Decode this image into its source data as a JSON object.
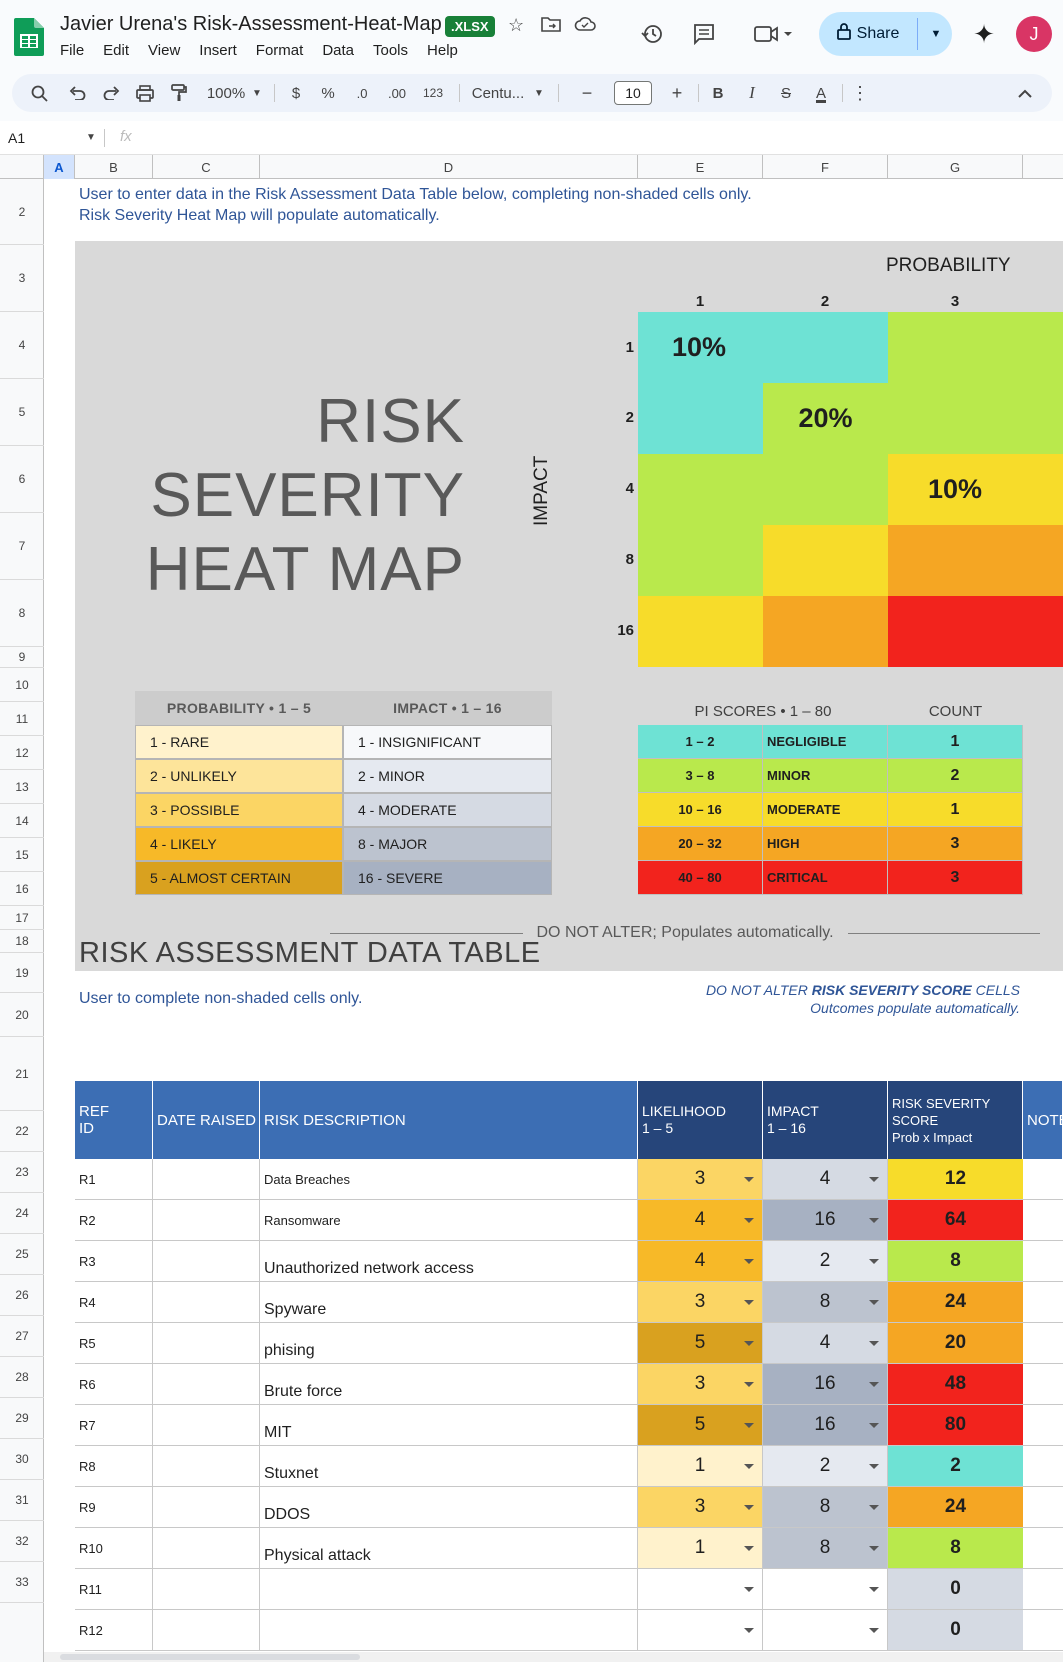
{
  "header": {
    "doc_title": "Javier Urena's Risk-Assessment-Heat-Map",
    "ext_badge": ".XLSX",
    "menus": [
      "File",
      "Edit",
      "View",
      "Insert",
      "Format",
      "Data",
      "Tools",
      "Help"
    ],
    "share_label": "Share",
    "avatar_letter": "J"
  },
  "toolbar": {
    "zoom": "100%",
    "currency": "$",
    "percent": "%",
    "dec_decrease": ".0",
    "dec_increase": ".00",
    "number_format": "123",
    "font": "Centu...",
    "font_size": "10",
    "bold": "B",
    "italic": "I",
    "strike": "S",
    "text_color": "A"
  },
  "formula_bar": {
    "cell_ref": "A1",
    "fx": "fx"
  },
  "columns": [
    "A",
    "B",
    "C",
    "D",
    "E",
    "F",
    "G"
  ],
  "rows": [
    "2",
    "3",
    "4",
    "5",
    "6",
    "7",
    "8",
    "9",
    "10",
    "11",
    "12",
    "13",
    "14",
    "15",
    "16",
    "17",
    "18",
    "19",
    "20",
    "21",
    "22",
    "23",
    "24",
    "25",
    "26",
    "27",
    "28",
    "29",
    "30",
    "31",
    "32",
    "33"
  ],
  "intro": {
    "line1": "User to enter data in the Risk Assessment Data Table below, completing non-shaded cells only.",
    "line2": "Risk Severity Heat Map will populate automatically."
  },
  "heatmap": {
    "title_lines": [
      "RISK",
      "SEVERITY",
      "HEAT MAP"
    ],
    "impact_label": "IMPACT",
    "probability_label": "PROBABILITY",
    "prob_numbers": [
      "1",
      "2",
      "3"
    ],
    "impact_numbers": [
      "1",
      "2",
      "4",
      "8",
      "16"
    ],
    "cells": {
      "c11": "10%",
      "c22": "20%",
      "c33": "10%"
    },
    "colors": {
      "negligible": "#6ee2d4",
      "minor": "#b9e94c",
      "moderate": "#f7dc2a",
      "high": "#f5a623",
      "critical": "#f2231d"
    }
  },
  "legend": {
    "prob_header": "PROBABILITY  •  1 – 5",
    "impact_header": "IMPACT  •  1 – 16",
    "probability": [
      "1 - RARE",
      "2 - UNLIKELY",
      "3 - POSSIBLE",
      "4 - LIKELY",
      "5 - ALMOST CERTAIN"
    ],
    "impact": [
      "1 - INSIGNIFICANT",
      "2 - MINOR",
      "4 - MODERATE",
      "8 - MAJOR",
      "16 - SEVERE"
    ]
  },
  "pi_scores": {
    "header": "PI SCORES  •  1 – 80",
    "count_header": "COUNT",
    "rows": [
      {
        "range": "1 – 2",
        "label": "NEGLIGIBLE",
        "count": "1"
      },
      {
        "range": "3 – 8",
        "label": "MINOR",
        "count": "2"
      },
      {
        "range": "10 – 16",
        "label": "MODERATE",
        "count": "1"
      },
      {
        "range": "20 – 32",
        "label": "HIGH",
        "count": "3"
      },
      {
        "range": "40 – 80",
        "label": "CRITICAL",
        "count": "3"
      }
    ]
  },
  "do_not_alter": "DO NOT ALTER; Populates automatically.",
  "data_table": {
    "title": "RISK ASSESSMENT DATA TABLE",
    "subtitle": "User to complete non-shaded cells only.",
    "note_line1_pre": "DO NOT ALTER ",
    "note_line1_bold": "RISK SEVERITY SCORE",
    "note_line1_post": " CELLS",
    "note_line2": "Outcomes populate automatically.",
    "headers": {
      "ref_1": "REF",
      "ref_2": "ID",
      "date": "DATE RAISED",
      "desc": "RISK DESCRIPTION",
      "like_1": "LIKELIHOOD",
      "like_2": "1 – 5",
      "imp_1": "IMPACT",
      "imp_2": "1 – 16",
      "score_1": "RISK SEVERITY",
      "score_2": "SCORE",
      "score_3": "Prob  x  Impact",
      "notes": "NOTES"
    },
    "rows": [
      {
        "id": "R1",
        "desc": "Data Breaches",
        "like": "3",
        "impact": "4",
        "score": "12"
      },
      {
        "id": "R2",
        "desc": "Ransomware",
        "like": "4",
        "impact": "16",
        "score": "64"
      },
      {
        "id": "R3",
        "desc": "Unauthorized network access",
        "like": "4",
        "impact": "2",
        "score": "8"
      },
      {
        "id": "R4",
        "desc": "Spyware",
        "like": "3",
        "impact": "8",
        "score": "24"
      },
      {
        "id": "R5",
        "desc": "phising",
        "like": "5",
        "impact": "4",
        "score": "20"
      },
      {
        "id": "R6",
        "desc": "Brute force",
        "like": "3",
        "impact": "16",
        "score": "48"
      },
      {
        "id": "R7",
        "desc": "MIT",
        "like": "5",
        "impact": "16",
        "score": "80"
      },
      {
        "id": "R8",
        "desc": "Stuxnet",
        "like": "1",
        "impact": "2",
        "score": "2"
      },
      {
        "id": "R9",
        "desc": "DDOS",
        "like": "3",
        "impact": "8",
        "score": "24"
      },
      {
        "id": "R10",
        "desc": "Physical attack",
        "like": "1",
        "impact": "8",
        "score": "8"
      },
      {
        "id": "R11",
        "desc": "",
        "like": "",
        "impact": "",
        "score": "0"
      },
      {
        "id": "R12",
        "desc": "",
        "like": "",
        "impact": "",
        "score": "0"
      }
    ]
  }
}
